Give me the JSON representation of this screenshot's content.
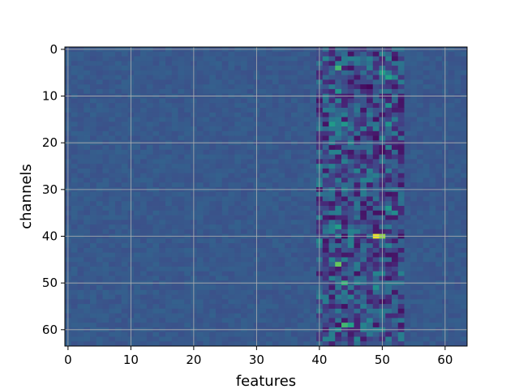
{
  "chart_data": {
    "type": "heatmap",
    "title": "",
    "xlabel": "features",
    "ylabel": "channels",
    "rows": 64,
    "cols": 64,
    "xlim": [
      -0.5,
      63.5
    ],
    "ylim": [
      63.5,
      -0.5
    ],
    "x_ticks": [
      0,
      10,
      20,
      30,
      40,
      50,
      60
    ],
    "y_ticks": [
      0,
      10,
      20,
      30,
      40,
      50,
      60
    ],
    "x_tick_labels": [
      "0",
      "10",
      "20",
      "30",
      "40",
      "50",
      "60"
    ],
    "y_tick_labels": [
      "0",
      "10",
      "20",
      "30",
      "40",
      "50",
      "60"
    ],
    "colormap": "viridis",
    "value_range": [
      0,
      1
    ],
    "grid": true,
    "baseline_value": 0.35,
    "active_band_cols": [
      40,
      53
    ],
    "hotspots": [
      {
        "row": 4,
        "col": 43,
        "value": 0.8
      },
      {
        "row": 5,
        "col": 50,
        "value": 0.7
      },
      {
        "row": 6,
        "col": 51,
        "value": 0.72
      },
      {
        "row": 8,
        "col": 48,
        "value": 0.02
      },
      {
        "row": 8,
        "col": 47,
        "value": 0.05
      },
      {
        "row": 9,
        "col": 43,
        "value": 0.65
      },
      {
        "row": 12,
        "col": 51,
        "value": 0.62
      },
      {
        "row": 16,
        "col": 42,
        "value": 0.68
      },
      {
        "row": 16,
        "col": 44,
        "value": 0.66
      },
      {
        "row": 16,
        "col": 51,
        "value": 0.64
      },
      {
        "row": 19,
        "col": 49,
        "value": 0.05
      },
      {
        "row": 22,
        "col": 50,
        "value": 0.05
      },
      {
        "row": 34,
        "col": 51,
        "value": 0.66
      },
      {
        "row": 35,
        "col": 52,
        "value": 0.6
      },
      {
        "row": 38,
        "col": 43,
        "value": 0.7
      },
      {
        "row": 40,
        "col": 49,
        "value": 0.98
      },
      {
        "row": 40,
        "col": 50,
        "value": 0.9
      },
      {
        "row": 41,
        "col": 40,
        "value": 0.6
      },
      {
        "row": 46,
        "col": 43,
        "value": 0.85
      },
      {
        "row": 50,
        "col": 44,
        "value": 0.78
      },
      {
        "row": 51,
        "col": 49,
        "value": 0.62
      },
      {
        "row": 59,
        "col": 44,
        "value": 0.8
      },
      {
        "row": 59,
        "col": 45,
        "value": 0.72
      },
      {
        "row": 60,
        "col": 43,
        "value": 0.6
      }
    ]
  }
}
